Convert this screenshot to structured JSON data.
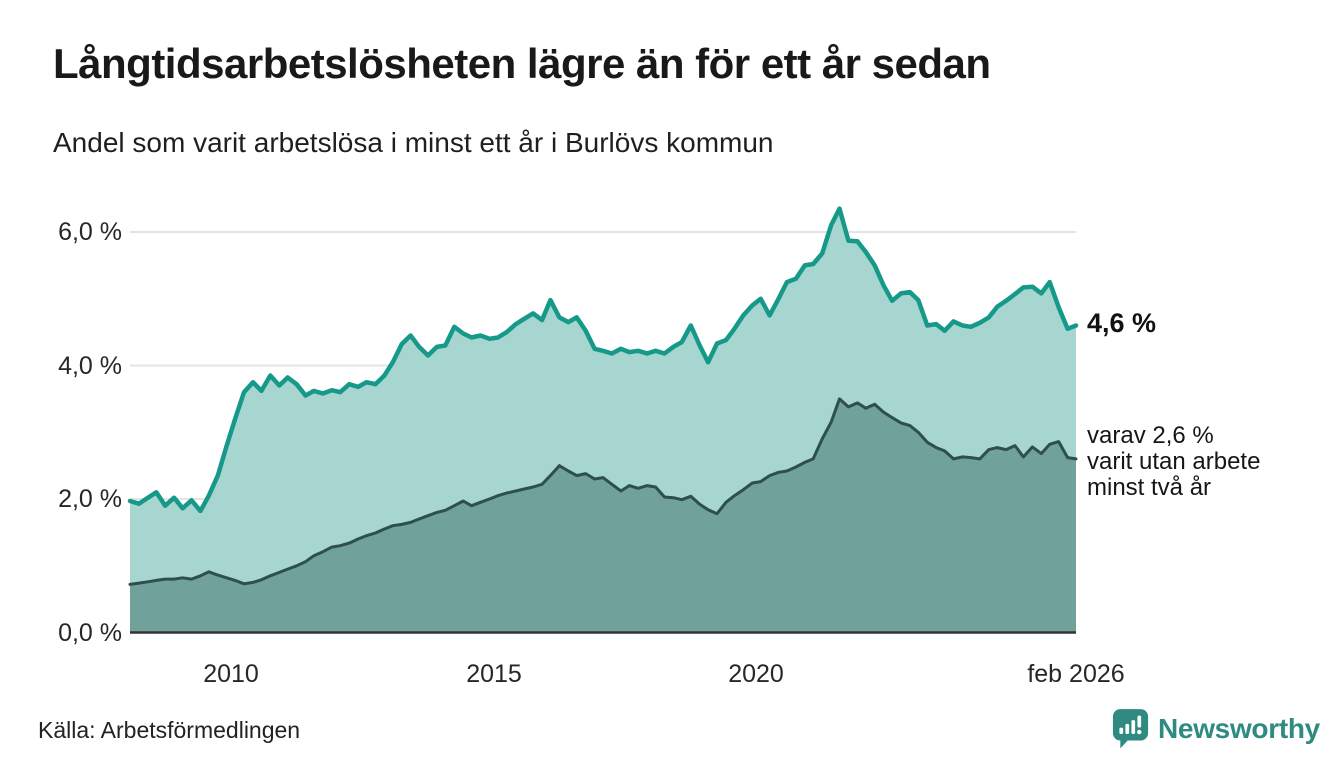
{
  "header": {
    "title": "Långtidsarbetslösheten lägre än för ett år sedan",
    "subtitle": "Andel som varit arbetslösa i minst ett år i Burlövs kommun"
  },
  "annotations": {
    "total_end_label": "4,6 %",
    "secondary_lines": [
      "varav 2,6 %",
      "varit utan arbete",
      "minst två år"
    ]
  },
  "footer": {
    "source": "Källa: Arbetsförmedlingen",
    "brand": "Newsworthy"
  },
  "colors": {
    "total_line": "#17998a",
    "total_fill": "#a6d6cf",
    "secondary_line": "#2e4f4b",
    "secondary_fill": "#70a19a",
    "grid": "#e4e4e4",
    "axis": "#333333",
    "brand": "#2f8a80",
    "text": "#191919"
  },
  "chart_data": {
    "type": "area",
    "title": "Långtidsarbetslösheten lägre än för ett år sedan",
    "subtitle": "Andel som varit arbetslösa i minst ett år i Burlövs kommun",
    "unit": "%",
    "grid": true,
    "legend_position": "end-labels",
    "xlim": [
      2008.08,
      2026.08
    ],
    "ylim": [
      0,
      6.5
    ],
    "y_ticks": [
      {
        "label": "0,0 %",
        "value": 0
      },
      {
        "label": "2,0 %",
        "value": 2
      },
      {
        "label": "4,0 %",
        "value": 4
      },
      {
        "label": "6,0 %",
        "value": 6
      }
    ],
    "x_ticks": [
      {
        "label": "2010",
        "x": 2010
      },
      {
        "label": "2015",
        "x": 2015
      },
      {
        "label": "2020",
        "x": 2020
      },
      {
        "label": "feb 2026",
        "x": 2026.08
      }
    ],
    "x": [
      2008.08,
      2008.25,
      2008.42,
      2008.58,
      2008.75,
      2008.92,
      2009.08,
      2009.25,
      2009.42,
      2009.58,
      2009.75,
      2009.92,
      2010.08,
      2010.25,
      2010.42,
      2010.58,
      2010.75,
      2010.92,
      2011.08,
      2011.25,
      2011.42,
      2011.58,
      2011.75,
      2011.92,
      2012.08,
      2012.25,
      2012.42,
      2012.58,
      2012.75,
      2012.92,
      2013.08,
      2013.25,
      2013.42,
      2013.58,
      2013.75,
      2013.92,
      2014.08,
      2014.25,
      2014.42,
      2014.58,
      2014.75,
      2014.92,
      2015.08,
      2015.25,
      2015.42,
      2015.58,
      2015.75,
      2015.92,
      2016.08,
      2016.25,
      2016.42,
      2016.58,
      2016.75,
      2016.92,
      2017.08,
      2017.25,
      2017.42,
      2017.58,
      2017.75,
      2017.92,
      2018.08,
      2018.25,
      2018.42,
      2018.58,
      2018.75,
      2018.92,
      2019.08,
      2019.25,
      2019.42,
      2019.58,
      2019.75,
      2019.92,
      2020.08,
      2020.25,
      2020.42,
      2020.58,
      2020.75,
      2020.92,
      2021.08,
      2021.25,
      2021.42,
      2021.58,
      2021.75,
      2021.92,
      2022.08,
      2022.25,
      2022.42,
      2022.58,
      2022.75,
      2022.92,
      2023.08,
      2023.25,
      2023.42,
      2023.58,
      2023.75,
      2023.92,
      2024.08,
      2024.25,
      2024.42,
      2024.58,
      2024.75,
      2024.92,
      2025.08,
      2025.25,
      2025.42,
      2025.58,
      2025.75,
      2025.92,
      2026.08
    ],
    "series": [
      {
        "name": "Andel som varit arbetslösa i minst ett år",
        "end_value": 4.6,
        "end_label": "4,6 %",
        "line_color": "#17998a",
        "fill_color": "#a6d6cf",
        "values": [
          1.97,
          1.93,
          2.02,
          2.1,
          1.9,
          2.02,
          1.86,
          1.98,
          1.82,
          2.05,
          2.35,
          2.8,
          3.2,
          3.6,
          3.75,
          3.62,
          3.85,
          3.7,
          3.82,
          3.72,
          3.55,
          3.62,
          3.58,
          3.63,
          3.6,
          3.72,
          3.68,
          3.75,
          3.72,
          3.85,
          4.05,
          4.32,
          4.45,
          4.28,
          4.15,
          4.28,
          4.3,
          4.58,
          4.48,
          4.42,
          4.45,
          4.4,
          4.42,
          4.5,
          4.62,
          4.7,
          4.78,
          4.68,
          4.98,
          4.72,
          4.65,
          4.72,
          4.52,
          4.25,
          4.22,
          4.18,
          4.25,
          4.2,
          4.22,
          4.18,
          4.22,
          4.18,
          4.28,
          4.35,
          4.6,
          4.3,
          4.05,
          4.33,
          4.38,
          4.55,
          4.75,
          4.9,
          5.0,
          4.75,
          5.0,
          5.25,
          5.3,
          5.5,
          5.52,
          5.68,
          6.1,
          6.35,
          5.87,
          5.86,
          5.7,
          5.5,
          5.2,
          4.97,
          5.08,
          5.1,
          4.98,
          4.6,
          4.62,
          4.52,
          4.66,
          4.6,
          4.58,
          4.64,
          4.72,
          4.88,
          4.97,
          5.07,
          5.17,
          5.18,
          5.08,
          5.25,
          4.87,
          4.55,
          4.6
        ]
      },
      {
        "name": "varav varit utan arbete minst två år",
        "end_value": 2.6,
        "end_label": "varav 2,6 % varit utan arbete minst två år",
        "line_color": "#2e4f4b",
        "fill_color": "#70a19a",
        "values": [
          0.72,
          0.74,
          0.76,
          0.78,
          0.8,
          0.8,
          0.82,
          0.8,
          0.85,
          0.91,
          0.86,
          0.82,
          0.78,
          0.73,
          0.75,
          0.79,
          0.85,
          0.9,
          0.95,
          1.0,
          1.06,
          1.15,
          1.21,
          1.28,
          1.3,
          1.34,
          1.4,
          1.45,
          1.49,
          1.55,
          1.6,
          1.62,
          1.65,
          1.7,
          1.75,
          1.8,
          1.83,
          1.9,
          1.97,
          1.9,
          1.95,
          2.0,
          2.05,
          2.09,
          2.12,
          2.15,
          2.18,
          2.22,
          2.35,
          2.5,
          2.42,
          2.35,
          2.38,
          2.3,
          2.32,
          2.22,
          2.12,
          2.2,
          2.16,
          2.2,
          2.18,
          2.03,
          2.02,
          1.99,
          2.04,
          1.92,
          1.84,
          1.78,
          1.95,
          2.05,
          2.14,
          2.24,
          2.26,
          2.35,
          2.4,
          2.42,
          2.48,
          2.55,
          2.6,
          2.9,
          3.15,
          3.5,
          3.38,
          3.44,
          3.36,
          3.42,
          3.3,
          3.22,
          3.14,
          3.1,
          3.0,
          2.85,
          2.77,
          2.72,
          2.6,
          2.63,
          2.62,
          2.6,
          2.74,
          2.77,
          2.74,
          2.8,
          2.63,
          2.78,
          2.68,
          2.82,
          2.86,
          2.62,
          2.6
        ]
      }
    ]
  }
}
